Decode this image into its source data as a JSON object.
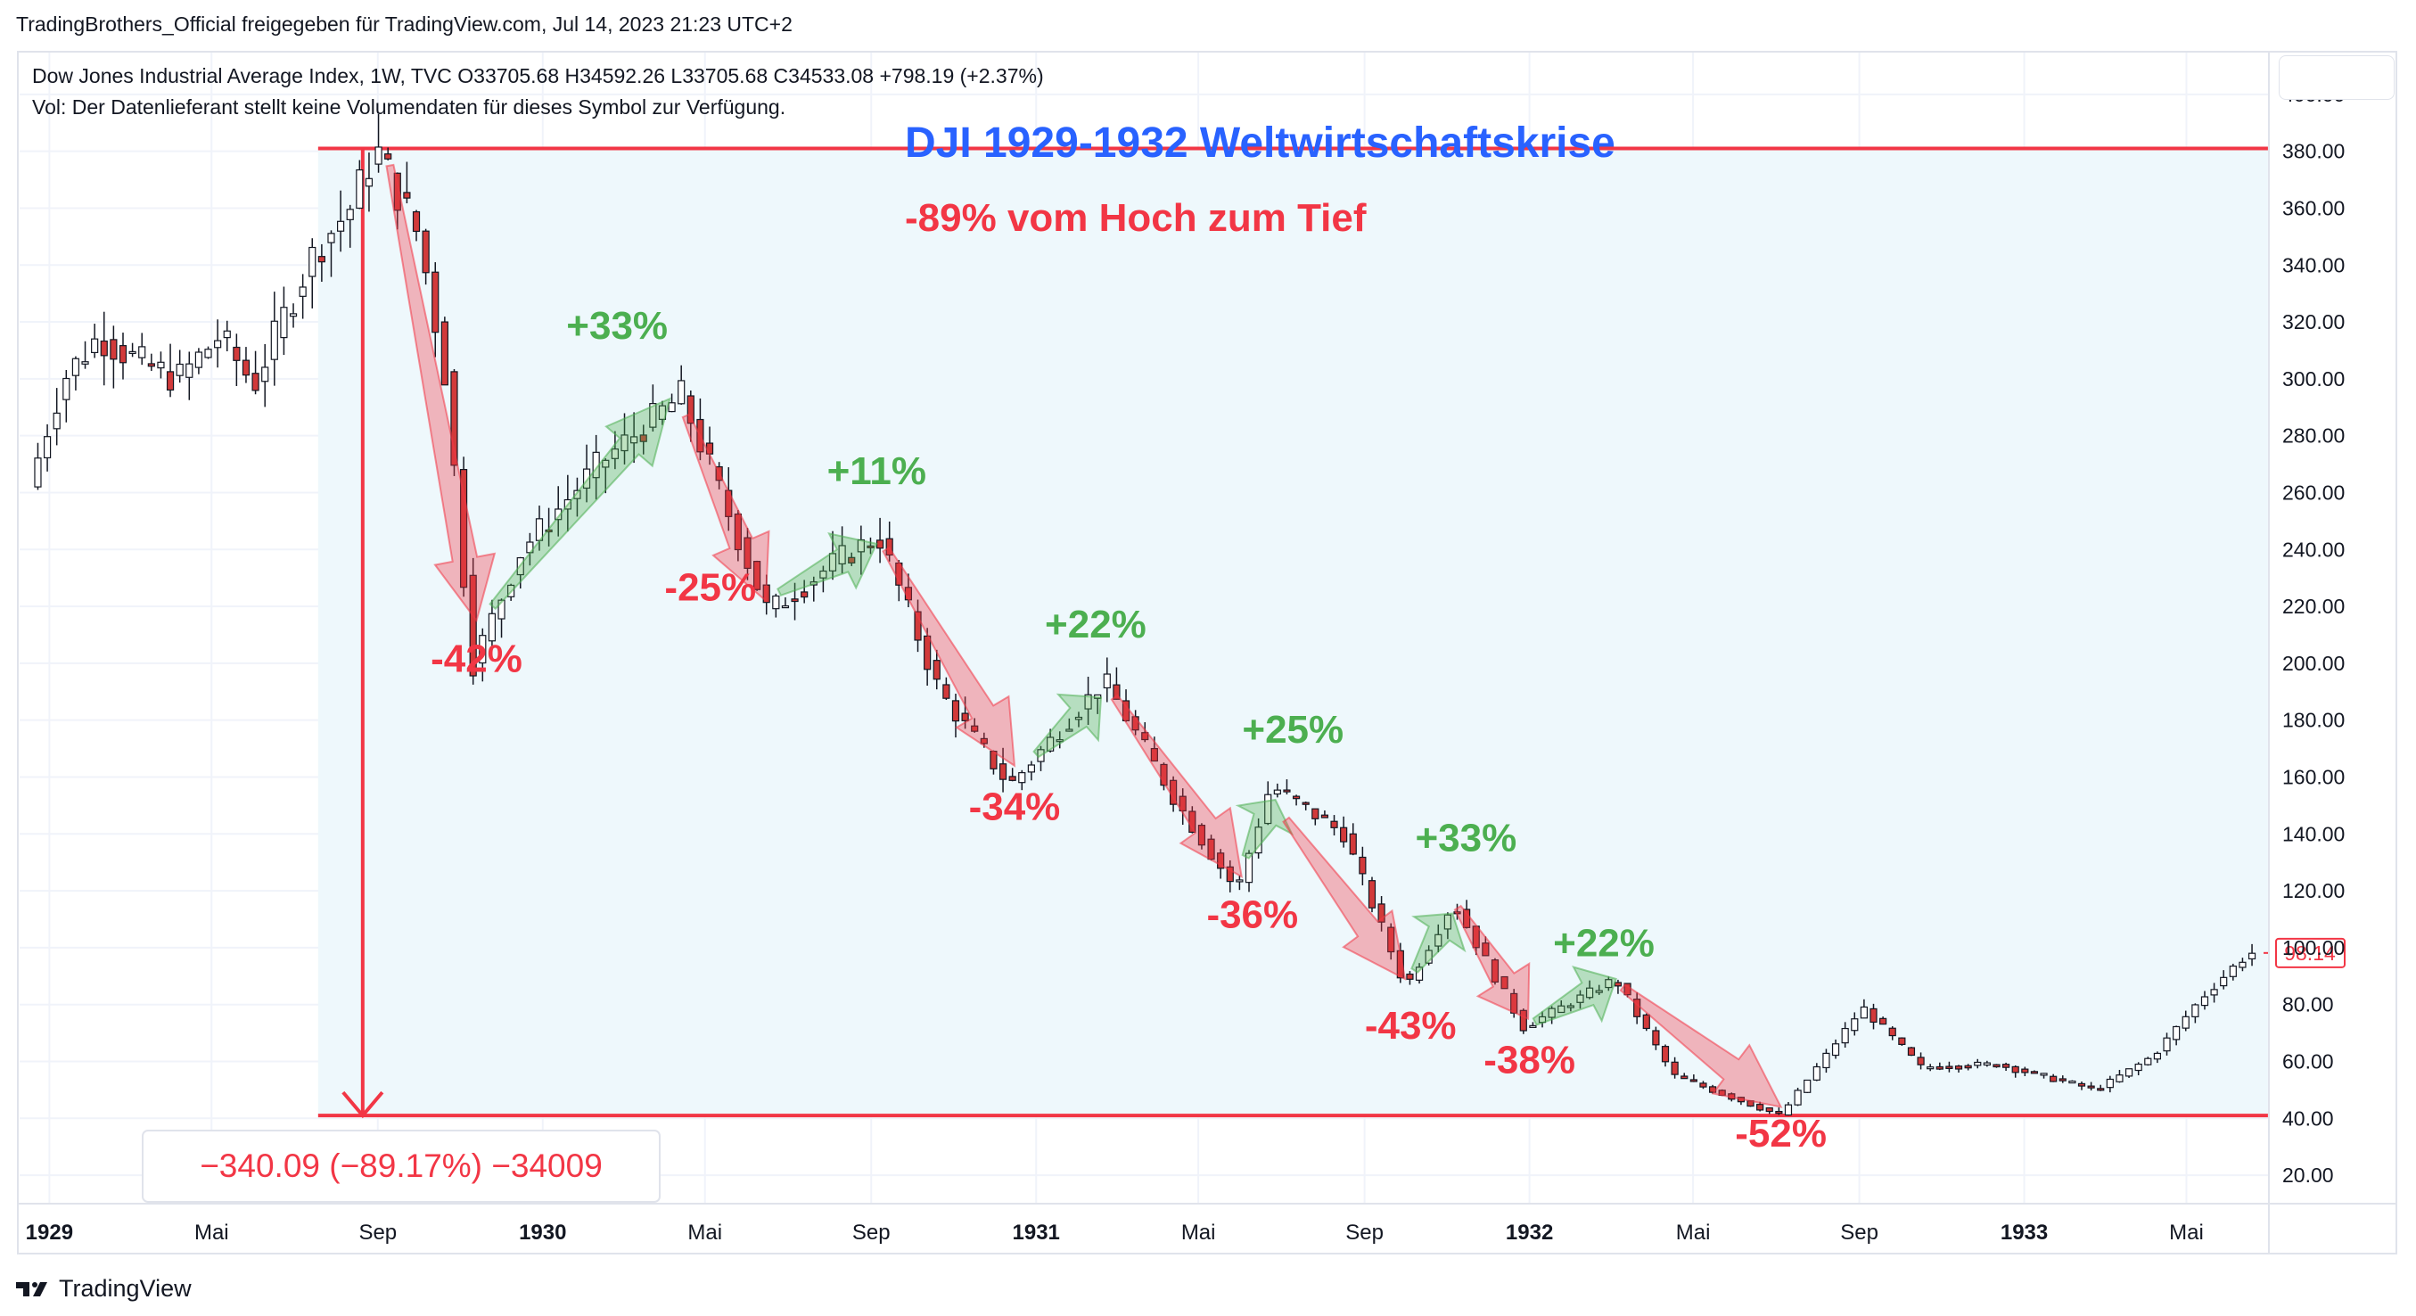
{
  "header": {
    "shared_by": "TradingBrothers_Official freigegeben für TradingView.com, Jul 14, 2023 21:23 UTC+2",
    "symbol_line": "Dow Jones Industrial Average Index, 1W, TVC  O33705.68  H34592.26  L33705.68  C34533.08  +798.19 (+2.37%)",
    "volume_note": "Vol: Der Datenlieferant stellt keine Volumendaten für dieses Symbol zur Verfügung."
  },
  "footer": {
    "brand": "TradingView"
  },
  "chart_data": {
    "type": "candlestick",
    "title": "DJI 1929-1932 Weltwirtschaftskrise",
    "subtitle": "-89% vom Hoch zum Tief",
    "ylim": [
      10,
      415
    ],
    "y_ticks": [
      "20.00",
      "40.00",
      "60.00",
      "80.00",
      "100.00",
      "120.00",
      "140.00",
      "160.00",
      "180.00",
      "200.00",
      "220.00",
      "240.00",
      "260.00",
      "280.00",
      "300.00",
      "320.00",
      "340.00",
      "360.00",
      "380.00",
      "400.00"
    ],
    "x_ticks": [
      {
        "label": "1929",
        "date": "1929-01",
        "bold": true
      },
      {
        "label": "Mai",
        "date": "1929-05",
        "bold": false
      },
      {
        "label": "Sep",
        "date": "1929-09",
        "bold": false
      },
      {
        "label": "1930",
        "date": "1930-01",
        "bold": true
      },
      {
        "label": "Mai",
        "date": "1930-05",
        "bold": false
      },
      {
        "label": "Sep",
        "date": "1930-09",
        "bold": false
      },
      {
        "label": "1931",
        "date": "1931-01",
        "bold": true
      },
      {
        "label": "Mai",
        "date": "1931-05",
        "bold": false
      },
      {
        "label": "Sep",
        "date": "1931-09",
        "bold": false
      },
      {
        "label": "1932",
        "date": "1932-01",
        "bold": true
      },
      {
        "label": "Mai",
        "date": "1932-05",
        "bold": false
      },
      {
        "label": "Sep",
        "date": "1932-09",
        "bold": false
      },
      {
        "label": "1933",
        "date": "1933-01",
        "bold": true
      },
      {
        "label": "Mai",
        "date": "1933-05",
        "bold": false
      }
    ],
    "price_path": [
      {
        "date": "1928-12-20",
        "value": 262
      },
      {
        "date": "1929-01-15",
        "value": 300
      },
      {
        "date": "1929-02-10",
        "value": 315
      },
      {
        "date": "1929-03-15",
        "value": 305
      },
      {
        "date": "1929-04-10",
        "value": 300
      },
      {
        "date": "1929-05-10",
        "value": 315
      },
      {
        "date": "1929-06-05",
        "value": 298
      },
      {
        "date": "1929-06-25",
        "value": 320
      },
      {
        "date": "1929-07-20",
        "value": 345
      },
      {
        "date": "1929-08-15",
        "value": 360
      },
      {
        "date": "1929-09-03",
        "value": 381
      },
      {
        "date": "1929-10-05",
        "value": 350
      },
      {
        "date": "1929-10-25",
        "value": 300
      },
      {
        "date": "1929-11-13",
        "value": 199
      },
      {
        "date": "1929-12-20",
        "value": 240
      },
      {
        "date": "1930-02-15",
        "value": 270
      },
      {
        "date": "1930-04-17",
        "value": 294
      },
      {
        "date": "1930-06-20",
        "value": 218
      },
      {
        "date": "1930-08-10",
        "value": 236
      },
      {
        "date": "1930-09-10",
        "value": 245
      },
      {
        "date": "1930-10-25",
        "value": 190
      },
      {
        "date": "1930-12-16",
        "value": 157
      },
      {
        "date": "1931-02-24",
        "value": 194
      },
      {
        "date": "1931-04-20",
        "value": 150
      },
      {
        "date": "1931-06-02",
        "value": 120
      },
      {
        "date": "1931-06-27",
        "value": 157
      },
      {
        "date": "1931-08-20",
        "value": 140
      },
      {
        "date": "1931-10-05",
        "value": 86
      },
      {
        "date": "1931-11-09",
        "value": 116
      },
      {
        "date": "1931-12-31",
        "value": 72
      },
      {
        "date": "1932-03-08",
        "value": 89
      },
      {
        "date": "1932-04-20",
        "value": 55
      },
      {
        "date": "1932-07-08",
        "value": 41
      },
      {
        "date": "1932-09-07",
        "value": 79
      },
      {
        "date": "1932-10-20",
        "value": 58
      },
      {
        "date": "1932-12-15",
        "value": 59
      },
      {
        "date": "1933-02-27",
        "value": 50
      },
      {
        "date": "1933-04-10",
        "value": 62
      },
      {
        "date": "1933-05-15",
        "value": 82
      },
      {
        "date": "1933-06-10",
        "value": 94
      },
      {
        "date": "1933-06-20",
        "value": 98.14
      }
    ],
    "last_price_label": "98.14",
    "range_box": {
      "start": "1929-09-03",
      "end": "1933-06-25",
      "high": 381,
      "low": 41
    },
    "measurement_label": "−340.09 (−89.17%) −34009",
    "moves": [
      {
        "label": "-42%",
        "direction": "down",
        "from": {
          "date": "1929-09-10",
          "value": 375
        },
        "to": {
          "date": "1929-11-13",
          "value": 215
        },
        "label_at": {
          "date": "1929-11-13",
          "value": 197
        }
      },
      {
        "label": "+33%",
        "direction": "up",
        "from": {
          "date": "1929-11-25",
          "value": 220
        },
        "to": {
          "date": "1930-04-05",
          "value": 293
        },
        "label_at": {
          "date": "1930-02-25",
          "value": 314
        }
      },
      {
        "label": "-25%",
        "direction": "down",
        "from": {
          "date": "1930-04-17",
          "value": 287
        },
        "to": {
          "date": "1930-06-15",
          "value": 222
        },
        "label_at": {
          "date": "1930-05-05",
          "value": 222
        }
      },
      {
        "label": "+11%",
        "direction": "up",
        "from": {
          "date": "1930-06-25",
          "value": 225
        },
        "to": {
          "date": "1930-09-05",
          "value": 242
        },
        "label_at": {
          "date": "1930-09-05",
          "value": 263
        }
      },
      {
        "label": "-34%",
        "direction": "down",
        "from": {
          "date": "1930-09-12",
          "value": 240
        },
        "to": {
          "date": "1930-12-16",
          "value": 164
        },
        "label_at": {
          "date": "1930-12-16",
          "value": 145
        }
      },
      {
        "label": "+22%",
        "direction": "up",
        "from": {
          "date": "1931-01-01",
          "value": 168
        },
        "to": {
          "date": "1931-02-18",
          "value": 188
        },
        "label_at": {
          "date": "1931-02-14",
          "value": 209
        }
      },
      {
        "label": "-36%",
        "direction": "down",
        "from": {
          "date": "1931-02-28",
          "value": 188
        },
        "to": {
          "date": "1931-06-02",
          "value": 125
        },
        "label_at": {
          "date": "1931-06-10",
          "value": 107
        }
      },
      {
        "label": "+25%",
        "direction": "up",
        "from": {
          "date": "1931-06-05",
          "value": 132
        },
        "to": {
          "date": "1931-06-27",
          "value": 152
        },
        "label_at": {
          "date": "1931-07-10",
          "value": 172
        }
      },
      {
        "label": "-43%",
        "direction": "down",
        "from": {
          "date": "1931-07-05",
          "value": 145
        },
        "to": {
          "date": "1931-10-01",
          "value": 89
        },
        "label_at": {
          "date": "1931-10-05",
          "value": 68
        }
      },
      {
        "label": "+33%",
        "direction": "up",
        "from": {
          "date": "1931-10-08",
          "value": 92
        },
        "to": {
          "date": "1931-11-05",
          "value": 112
        },
        "label_at": {
          "date": "1931-11-15",
          "value": 134
        }
      },
      {
        "label": "-38%",
        "direction": "down",
        "from": {
          "date": "1931-11-09",
          "value": 114
        },
        "to": {
          "date": "1931-12-31",
          "value": 75
        },
        "label_at": {
          "date": "1932-01-01",
          "value": 56
        }
      },
      {
        "label": "+22%",
        "direction": "up",
        "from": {
          "date": "1932-01-05",
          "value": 74
        },
        "to": {
          "date": "1932-03-05",
          "value": 89
        },
        "label_at": {
          "date": "1932-02-25",
          "value": 97
        }
      },
      {
        "label": "-52%",
        "direction": "down",
        "from": {
          "date": "1932-03-10",
          "value": 86
        },
        "to": {
          "date": "1932-07-05",
          "value": 44
        },
        "label_at": {
          "date": "1932-07-05",
          "value": 30
        }
      }
    ]
  },
  "colors": {
    "candle_up": "#ffffff",
    "candle_down": "#d23a3a",
    "candle_outline": "#131722",
    "box_fill": "#eef8fc",
    "range_line": "#f23645",
    "down_arrow": "#f23645",
    "up_arrow": "#4caf50",
    "title": "#2962ff",
    "down_text": "#f23645",
    "up_text": "#4caf50",
    "grid": "#f0f3fa",
    "axis_text": "#131722"
  }
}
